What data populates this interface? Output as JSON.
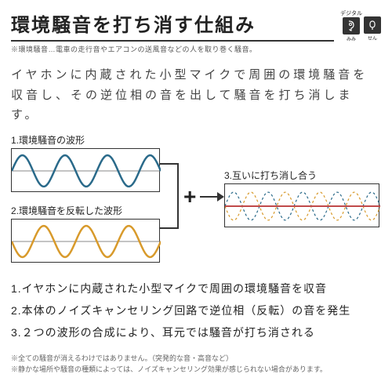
{
  "title": "環境騒音を打ち消す仕組み",
  "subtitle": "※環境騒音…電車の走行音やエアコンの送風音などの人を取り巻く騒音。",
  "badge": {
    "top": "デジタル",
    "left": {
      "char": "耳",
      "ruby": "みみ"
    },
    "right": {
      "char": "栓",
      "ruby": "せん"
    }
  },
  "intro": "イヤホンに内蔵された小型マイクで周囲の環境騒音を収音し、その逆位相の音を出して騒音を打ち消します。",
  "waves": {
    "w1": {
      "label": "1.環境騒音の波形",
      "color": "#2a6a8a"
    },
    "w2": {
      "label": "2.環境騒音を反転した波形",
      "color": "#d89a2b"
    },
    "w3": {
      "label": "3.互いに打ち消し合う",
      "line_color": "#c04a4a"
    }
  },
  "steps": [
    "1.イヤホンに内蔵された小型マイクで周囲の環境騒音を収音",
    "2.本体のノイズキャンセリング回路で逆位相（反転）の音を発生",
    "3.２つの波形の合成により、耳元では騒音が打ち消される"
  ],
  "notes": [
    "※全ての騒音が消えるわけではありません。（突発的な音・高音など）",
    "※静かな場所や騒音の種類によっては、ノイズキャンセリング効果が感じられない場合があります。"
  ]
}
